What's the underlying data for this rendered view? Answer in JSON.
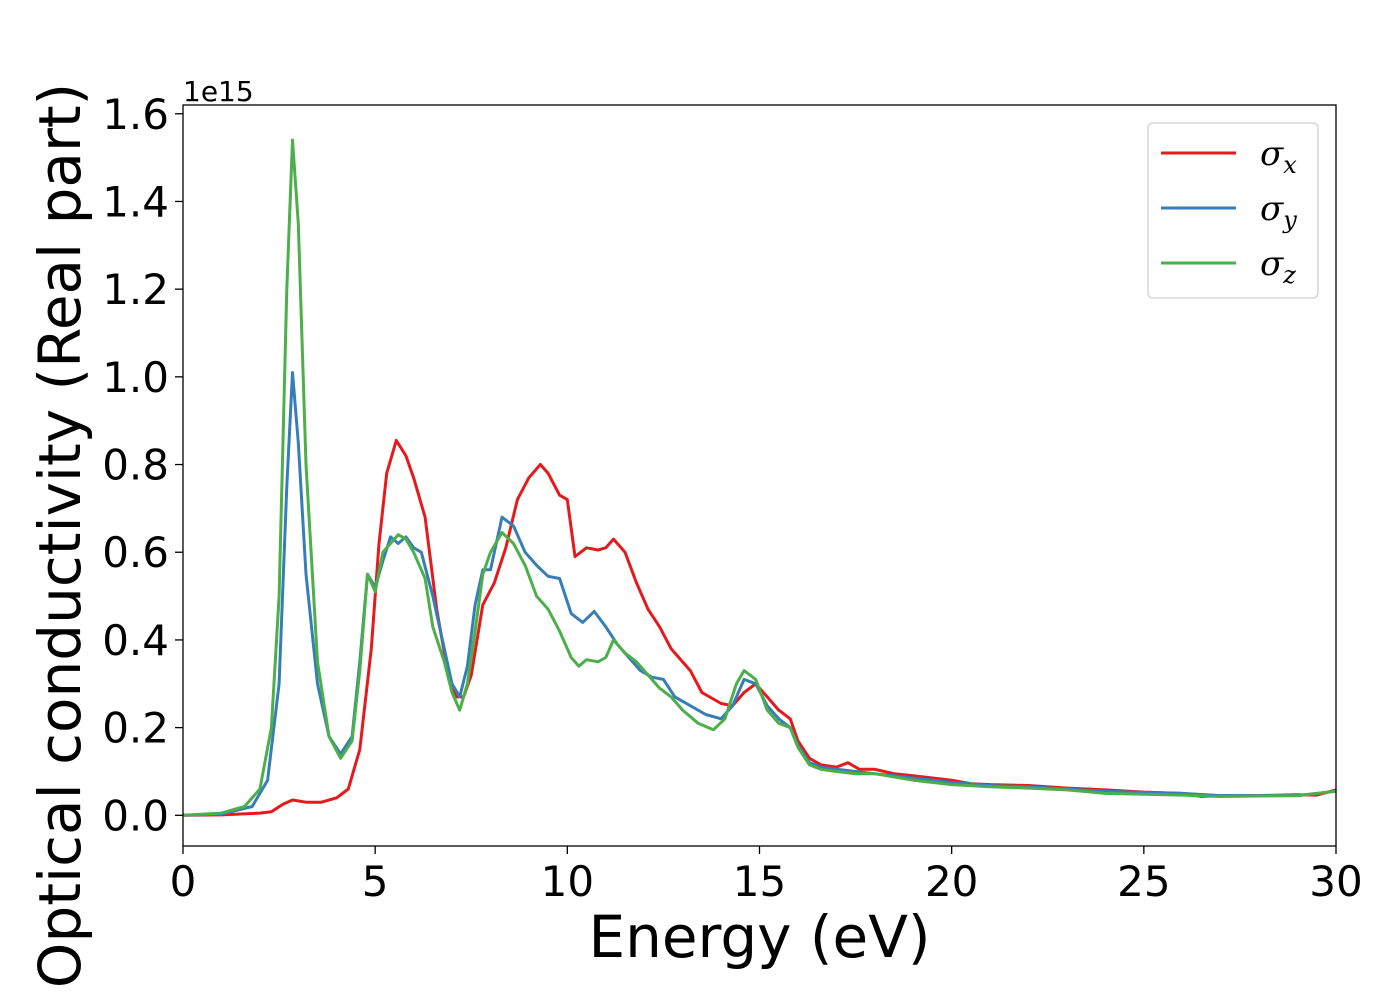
{
  "chart_data": {
    "type": "line",
    "title": "",
    "xlabel": "Energy (eV)",
    "ylabel": "Optical conductivity (Real part)",
    "y_offset_text": "1e15",
    "xlim": [
      0,
      30
    ],
    "ylim": [
      -0.07,
      1.62
    ],
    "x_ticks": [
      0,
      5,
      10,
      15,
      20,
      25,
      30
    ],
    "x_tick_labels": [
      "0",
      "5",
      "10",
      "15",
      "20",
      "25",
      "30"
    ],
    "y_ticks": [
      0.0,
      0.2,
      0.4,
      0.6,
      0.8,
      1.0,
      1.2,
      1.4,
      1.6
    ],
    "y_tick_labels": [
      "0.0",
      "0.2",
      "0.4",
      "0.6",
      "0.8",
      "1.0",
      "1.2",
      "1.4",
      "1.6"
    ],
    "grid": false,
    "legend_position": "top-right",
    "series": [
      {
        "name": "σx",
        "legend_symbol": "σ",
        "legend_sub": "x",
        "color": "#e41a1c",
        "points": [
          [
            0,
            0
          ],
          [
            1,
            0.001
          ],
          [
            2,
            0.005
          ],
          [
            2.3,
            0.008
          ],
          [
            2.6,
            0.025
          ],
          [
            2.85,
            0.035
          ],
          [
            3.2,
            0.03
          ],
          [
            3.6,
            0.03
          ],
          [
            4,
            0.04
          ],
          [
            4.3,
            0.06
          ],
          [
            4.6,
            0.15
          ],
          [
            4.9,
            0.38
          ],
          [
            5.1,
            0.62
          ],
          [
            5.3,
            0.78
          ],
          [
            5.55,
            0.855
          ],
          [
            5.8,
            0.82
          ],
          [
            6,
            0.77
          ],
          [
            6.3,
            0.68
          ],
          [
            6.6,
            0.47
          ],
          [
            6.9,
            0.32
          ],
          [
            7.1,
            0.27
          ],
          [
            7.3,
            0.27
          ],
          [
            7.5,
            0.32
          ],
          [
            7.8,
            0.48
          ],
          [
            8.1,
            0.53
          ],
          [
            8.4,
            0.61
          ],
          [
            8.7,
            0.72
          ],
          [
            9,
            0.77
          ],
          [
            9.3,
            0.8
          ],
          [
            9.5,
            0.78
          ],
          [
            9.8,
            0.73
          ],
          [
            10,
            0.72
          ],
          [
            10.2,
            0.59
          ],
          [
            10.5,
            0.61
          ],
          [
            10.8,
            0.605
          ],
          [
            11,
            0.61
          ],
          [
            11.2,
            0.63
          ],
          [
            11.5,
            0.6
          ],
          [
            11.8,
            0.53
          ],
          [
            12.1,
            0.47
          ],
          [
            12.4,
            0.43
          ],
          [
            12.7,
            0.38
          ],
          [
            13.2,
            0.33
          ],
          [
            13.5,
            0.28
          ],
          [
            14,
            0.255
          ],
          [
            14.3,
            0.25
          ],
          [
            14.6,
            0.28
          ],
          [
            14.9,
            0.3
          ],
          [
            15.2,
            0.27
          ],
          [
            15.5,
            0.24
          ],
          [
            15.8,
            0.22
          ],
          [
            16,
            0.17
          ],
          [
            16.3,
            0.13
          ],
          [
            16.6,
            0.115
          ],
          [
            17,
            0.11
          ],
          [
            17.3,
            0.12
          ],
          [
            17.6,
            0.105
          ],
          [
            18,
            0.105
          ],
          [
            18.5,
            0.095
          ],
          [
            19,
            0.09
          ],
          [
            19.5,
            0.085
          ],
          [
            20,
            0.08
          ],
          [
            20.5,
            0.072
          ],
          [
            21,
            0.07
          ],
          [
            22,
            0.068
          ],
          [
            23,
            0.062
          ],
          [
            24,
            0.058
          ],
          [
            25,
            0.053
          ],
          [
            26,
            0.05
          ],
          [
            26.5,
            0.043
          ],
          [
            27,
            0.045
          ],
          [
            28,
            0.045
          ],
          [
            29,
            0.047
          ],
          [
            29.5,
            0.046
          ],
          [
            30,
            0.058
          ]
        ]
      },
      {
        "name": "σy",
        "legend_symbol": "σ",
        "legend_sub": "y",
        "color": "#377eb8",
        "points": [
          [
            0,
            0
          ],
          [
            1,
            0.003
          ],
          [
            1.8,
            0.02
          ],
          [
            2.2,
            0.08
          ],
          [
            2.5,
            0.3
          ],
          [
            2.7,
            0.75
          ],
          [
            2.85,
            1.01
          ],
          [
            3,
            0.85
          ],
          [
            3.2,
            0.55
          ],
          [
            3.5,
            0.3
          ],
          [
            3.8,
            0.18
          ],
          [
            4.1,
            0.14
          ],
          [
            4.4,
            0.18
          ],
          [
            4.6,
            0.35
          ],
          [
            4.8,
            0.55
          ],
          [
            5,
            0.52
          ],
          [
            5.2,
            0.58
          ],
          [
            5.4,
            0.635
          ],
          [
            5.6,
            0.62
          ],
          [
            5.8,
            0.635
          ],
          [
            6,
            0.61
          ],
          [
            6.2,
            0.6
          ],
          [
            6.5,
            0.5
          ],
          [
            6.8,
            0.38
          ],
          [
            7,
            0.3
          ],
          [
            7.2,
            0.27
          ],
          [
            7.4,
            0.34
          ],
          [
            7.6,
            0.48
          ],
          [
            7.8,
            0.56
          ],
          [
            8,
            0.56
          ],
          [
            8.3,
            0.68
          ],
          [
            8.6,
            0.66
          ],
          [
            8.9,
            0.6
          ],
          [
            9.2,
            0.57
          ],
          [
            9.5,
            0.545
          ],
          [
            9.8,
            0.54
          ],
          [
            10.1,
            0.46
          ],
          [
            10.4,
            0.44
          ],
          [
            10.7,
            0.465
          ],
          [
            11,
            0.43
          ],
          [
            11.3,
            0.39
          ],
          [
            11.6,
            0.36
          ],
          [
            11.9,
            0.33
          ],
          [
            12.2,
            0.315
          ],
          [
            12.5,
            0.31
          ],
          [
            12.8,
            0.27
          ],
          [
            13.2,
            0.25
          ],
          [
            13.6,
            0.23
          ],
          [
            14,
            0.22
          ],
          [
            14.3,
            0.25
          ],
          [
            14.6,
            0.31
          ],
          [
            14.9,
            0.3
          ],
          [
            15.2,
            0.25
          ],
          [
            15.5,
            0.22
          ],
          [
            15.8,
            0.2
          ],
          [
            16,
            0.16
          ],
          [
            16.3,
            0.12
          ],
          [
            16.6,
            0.11
          ],
          [
            17,
            0.105
          ],
          [
            17.5,
            0.1
          ],
          [
            18,
            0.095
          ],
          [
            19,
            0.085
          ],
          [
            20,
            0.075
          ],
          [
            21,
            0.068
          ],
          [
            22,
            0.065
          ],
          [
            23,
            0.06
          ],
          [
            24,
            0.055
          ],
          [
            25,
            0.052
          ],
          [
            26,
            0.05
          ],
          [
            27,
            0.045
          ],
          [
            28,
            0.045
          ],
          [
            29,
            0.045
          ],
          [
            30,
            0.055
          ]
        ]
      },
      {
        "name": "σz",
        "legend_symbol": "σ",
        "legend_sub": "z",
        "color": "#4daf4a",
        "points": [
          [
            0,
            0
          ],
          [
            1,
            0.005
          ],
          [
            1.6,
            0.02
          ],
          [
            2,
            0.06
          ],
          [
            2.3,
            0.2
          ],
          [
            2.5,
            0.5
          ],
          [
            2.7,
            1.2
          ],
          [
            2.85,
            1.54
          ],
          [
            3,
            1.35
          ],
          [
            3.2,
            0.8
          ],
          [
            3.5,
            0.35
          ],
          [
            3.8,
            0.18
          ],
          [
            4.1,
            0.13
          ],
          [
            4.4,
            0.17
          ],
          [
            4.6,
            0.33
          ],
          [
            4.8,
            0.55
          ],
          [
            5,
            0.51
          ],
          [
            5.2,
            0.6
          ],
          [
            5.4,
            0.62
          ],
          [
            5.6,
            0.64
          ],
          [
            5.8,
            0.63
          ],
          [
            6,
            0.6
          ],
          [
            6.3,
            0.54
          ],
          [
            6.5,
            0.43
          ],
          [
            6.8,
            0.35
          ],
          [
            7,
            0.28
          ],
          [
            7.2,
            0.24
          ],
          [
            7.4,
            0.3
          ],
          [
            7.6,
            0.42
          ],
          [
            7.8,
            0.55
          ],
          [
            8,
            0.6
          ],
          [
            8.3,
            0.645
          ],
          [
            8.6,
            0.62
          ],
          [
            8.9,
            0.57
          ],
          [
            9.2,
            0.5
          ],
          [
            9.5,
            0.47
          ],
          [
            9.8,
            0.42
          ],
          [
            10.1,
            0.36
          ],
          [
            10.3,
            0.34
          ],
          [
            10.5,
            0.355
          ],
          [
            10.8,
            0.35
          ],
          [
            11,
            0.36
          ],
          [
            11.2,
            0.4
          ],
          [
            11.5,
            0.37
          ],
          [
            11.8,
            0.35
          ],
          [
            12.1,
            0.32
          ],
          [
            12.4,
            0.29
          ],
          [
            12.7,
            0.27
          ],
          [
            13,
            0.24
          ],
          [
            13.4,
            0.21
          ],
          [
            13.8,
            0.195
          ],
          [
            14.1,
            0.22
          ],
          [
            14.4,
            0.3
          ],
          [
            14.6,
            0.33
          ],
          [
            14.9,
            0.31
          ],
          [
            15.2,
            0.24
          ],
          [
            15.5,
            0.21
          ],
          [
            15.8,
            0.2
          ],
          [
            16,
            0.155
          ],
          [
            16.3,
            0.115
          ],
          [
            16.6,
            0.105
          ],
          [
            17,
            0.1
          ],
          [
            17.5,
            0.095
          ],
          [
            18,
            0.095
          ],
          [
            19,
            0.08
          ],
          [
            20,
            0.07
          ],
          [
            21,
            0.065
          ],
          [
            22,
            0.062
          ],
          [
            23,
            0.058
          ],
          [
            24,
            0.05
          ],
          [
            25,
            0.048
          ],
          [
            26,
            0.046
          ],
          [
            27,
            0.043
          ],
          [
            28,
            0.044
          ],
          [
            29,
            0.045
          ],
          [
            30,
            0.055
          ]
        ]
      }
    ]
  }
}
